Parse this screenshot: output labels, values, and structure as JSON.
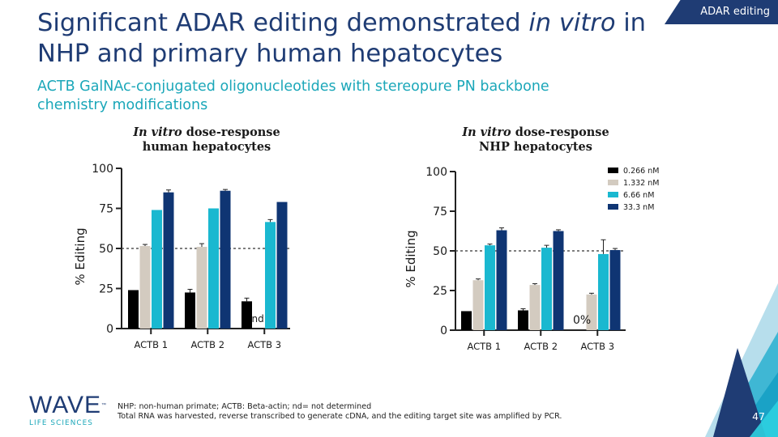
{
  "header": {
    "title_part1": "Significant ADAR editing demonstrated ",
    "title_italic1": "in vitro",
    "title_part2": " in NHP and primary human hepatocytes",
    "subtitle": "ACTB GalNAc-conjugated oligonucleotides with stereopure PN backbone chemistry modifications",
    "tag": "ADAR editing"
  },
  "charts": [
    {
      "title_italic": "In vitro",
      "title_rest": " dose-response",
      "title_line2": "human hepatocytes"
    },
    {
      "title_italic": "In vitro",
      "title_rest": " dose-response",
      "title_line2": "NHP hepatocytes"
    }
  ],
  "chart_data": [
    {
      "type": "bar",
      "categories": [
        "ACTB 1",
        "ACTB 2",
        "ACTB 3"
      ],
      "ylabel": "% Editing",
      "ylim": [
        0,
        100
      ],
      "yticks": [
        0,
        25,
        50,
        75,
        100
      ],
      "reference_line": 50,
      "series": [
        {
          "values": [
            24,
            22.5,
            17
          ],
          "errors": [
            0,
            2,
            2
          ]
        },
        {
          "values": [
            51.5,
            51,
            null
          ],
          "errors": [
            1,
            2,
            0
          ]
        },
        {
          "values": [
            74,
            75,
            66.5
          ],
          "errors": [
            0,
            0,
            1.5
          ]
        },
        {
          "values": [
            85,
            86,
            79
          ],
          "errors": [
            1.5,
            0.8,
            0
          ]
        }
      ],
      "annotations": [
        {
          "category": "ACTB 3",
          "series": 1,
          "text": "nd"
        }
      ]
    },
    {
      "type": "bar",
      "categories": [
        "ACTB 1",
        "ACTB 2",
        "ACTB 3"
      ],
      "ylabel": "% Editing",
      "ylim": [
        0,
        100
      ],
      "yticks": [
        0,
        25,
        50,
        75,
        100
      ],
      "reference_line": 50,
      "series": [
        {
          "name": "0.266 nM",
          "values": [
            12,
            12.5,
            0
          ],
          "errors": [
            0,
            1,
            0
          ]
        },
        {
          "name": "1.332 nM",
          "values": [
            31.5,
            28.5,
            22.5
          ],
          "errors": [
            0.8,
            0.8,
            0.8
          ]
        },
        {
          "name": "6.66 nM",
          "values": [
            53.5,
            52,
            48
          ],
          "errors": [
            0.8,
            1.5,
            9
          ]
        },
        {
          "name": "33.3 nM",
          "values": [
            63,
            62.5,
            50.5
          ],
          "errors": [
            1.5,
            0.8,
            1
          ]
        }
      ],
      "annotations": [
        {
          "category": "ACTB 3",
          "series": 0,
          "text": "0%"
        }
      ],
      "legend": "top-right"
    }
  ],
  "colors": {
    "series": [
      "#000000",
      "#d3cbc0",
      "#1ab8d0",
      "#0f3573"
    ],
    "title": "#1f3c74",
    "accent": "#1ba7b9"
  },
  "footnote": {
    "line1": "NHP: non-human primate; ACTB: Beta-actin; nd= not determined",
    "line2": "Total RNA was harvested, reverse transcribed to generate cDNA, and the editing target site was amplified by PCR."
  },
  "logo": {
    "name": "WAVE",
    "tm": "™",
    "sub": "LIFE SCIENCES"
  },
  "page_number": "47"
}
